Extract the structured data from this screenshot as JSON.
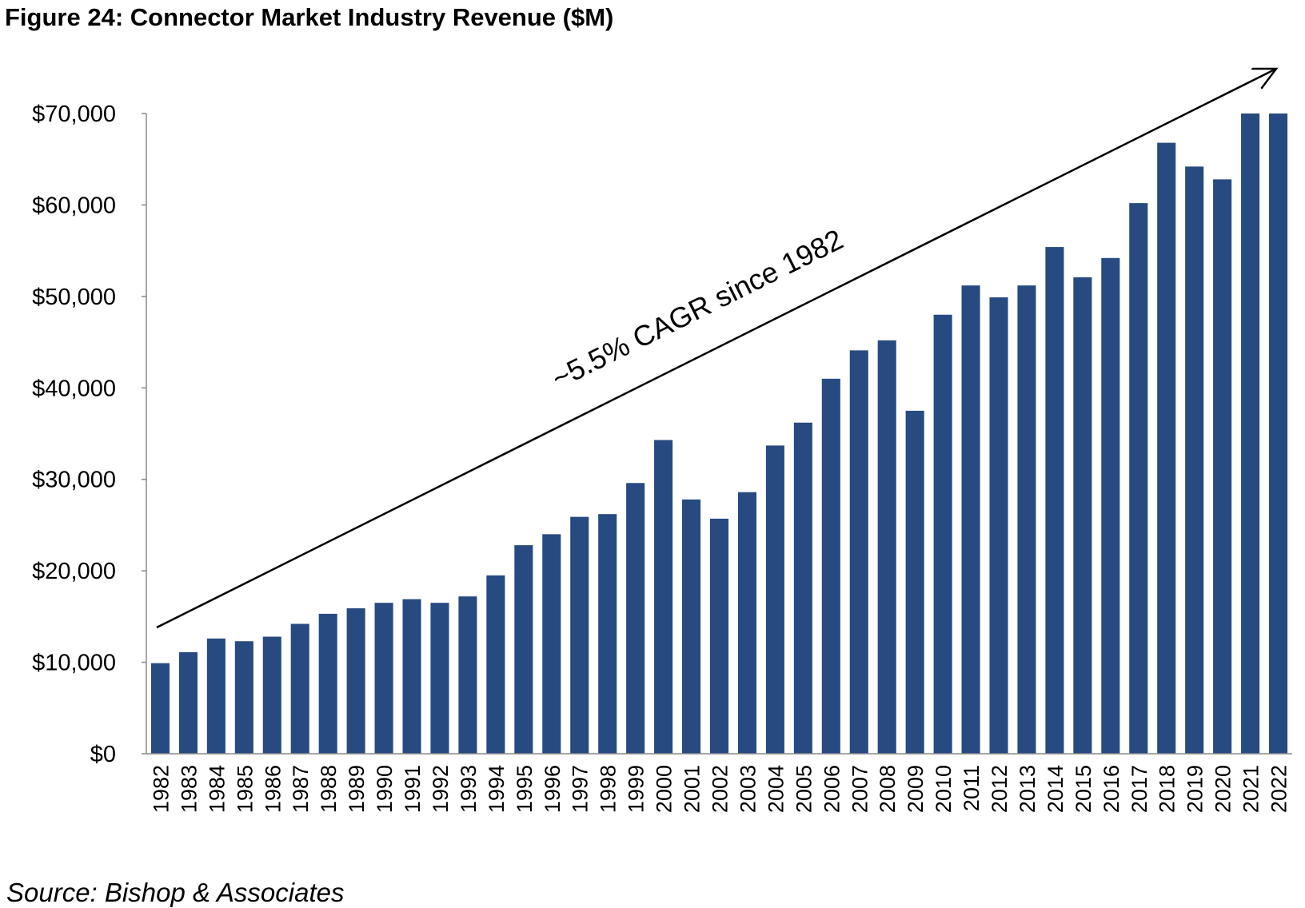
{
  "title": "Figure 24: Connector Market Industry Revenue ($M)",
  "source": "Source: Bishop & Associates",
  "colors": {
    "bar": "#274a80",
    "axis": "#888888",
    "arrow": "#000000"
  },
  "chart_data": {
    "type": "bar",
    "title": "Figure 24: Connector Market Industry Revenue ($M)",
    "xlabel": "",
    "ylabel": "",
    "ylim": [
      0,
      70000
    ],
    "yticks": [
      0,
      10000,
      20000,
      30000,
      40000,
      50000,
      60000,
      70000
    ],
    "ytick_labels": [
      "$0",
      "$10,000",
      "$20,000",
      "$30,000",
      "$40,000",
      "$50,000",
      "$60,000",
      "$70,000"
    ],
    "grid": false,
    "legend": "none",
    "categories": [
      "1982",
      "1983",
      "1984",
      "1985",
      "1986",
      "1987",
      "1988",
      "1989",
      "1990",
      "1991",
      "1992",
      "1993",
      "1994",
      "1995",
      "1996",
      "1997",
      "1998",
      "1999",
      "2000",
      "2001",
      "2002",
      "2003",
      "2004",
      "2005",
      "2006",
      "2007",
      "2008",
      "2009",
      "2010",
      "2011",
      "2012",
      "2013",
      "2014",
      "2015",
      "2016",
      "2017",
      "2018",
      "2019",
      "2020",
      "2021",
      "2022"
    ],
    "values": [
      9900,
      11100,
      12600,
      12300,
      12800,
      14200,
      15300,
      15900,
      16500,
      16900,
      16500,
      17200,
      19500,
      22800,
      24000,
      25900,
      26200,
      29600,
      34300,
      27800,
      25700,
      28600,
      33700,
      36200,
      41000,
      44100,
      45200,
      37500,
      48000,
      51200,
      49900,
      51200,
      55400,
      52100,
      54200,
      60200,
      66800,
      64200,
      62800,
      70000,
      70000
    ],
    "annotations": [
      {
        "text": "~5.5% CAGR since 1982",
        "type": "trend-arrow"
      }
    ]
  }
}
